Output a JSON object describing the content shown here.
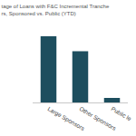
{
  "chart_data": {
    "type": "bar",
    "title": [
      "tage of Loans with F&C Incremental Tranche",
      "rs, Sponsored vs. Public (YTD)"
    ],
    "categories": [
      "Large Sponsors",
      "Other Sponsors",
      "Public le"
    ],
    "values": [
      44,
      34,
      3
    ],
    "color": "#1d4e5e",
    "ylim": [
      0,
      50
    ],
    "grid": false,
    "tick_labels": "x"
  }
}
